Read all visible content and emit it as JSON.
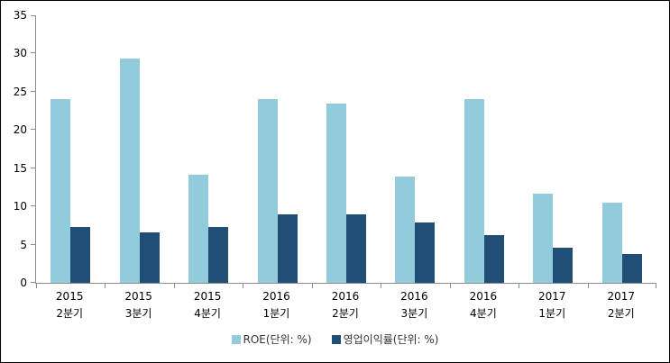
{
  "chart": {
    "background": "#FFFFFF",
    "frame_border_color": "#000000",
    "axis_color": "#8C8C8C",
    "axis_label_color": "#000000",
    "legend_text_color": "#333333"
  },
  "chart_data": {
    "type": "bar",
    "title": "",
    "xlabel": "",
    "ylabel": "",
    "categories": [
      [
        "2015",
        "2분기"
      ],
      [
        "2015",
        "3분기"
      ],
      [
        "2015",
        "4분기"
      ],
      [
        "2016",
        "1분기"
      ],
      [
        "2016",
        "2분기"
      ],
      [
        "2016",
        "3분기"
      ],
      [
        "2016",
        "4분기"
      ],
      [
        "2017",
        "1분기"
      ],
      [
        "2017",
        "2분기"
      ]
    ],
    "series": [
      {
        "name": "ROE(단위: %)",
        "color": "#92CBDB",
        "values": [
          24,
          29.4,
          14.2,
          24,
          23.4,
          13.9,
          24,
          11.7,
          10.5
        ]
      },
      {
        "name": "영업이익률(단위: %)",
        "color": "#204E74",
        "values": [
          7.3,
          6.6,
          7.3,
          9,
          9,
          7.9,
          6.3,
          4.6,
          3.8
        ]
      }
    ],
    "ylim": [
      0,
      35
    ],
    "yticks": [
      0,
      5,
      10,
      15,
      20,
      25,
      30,
      35
    ],
    "grid": false,
    "legend_position": "bottom"
  }
}
